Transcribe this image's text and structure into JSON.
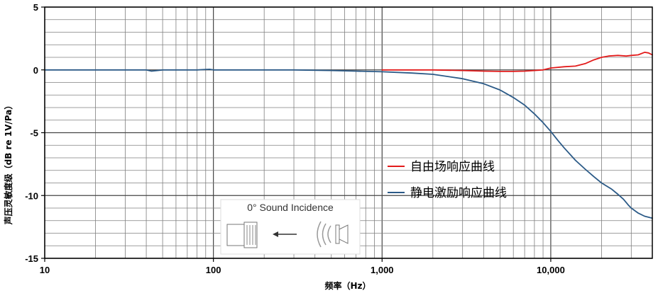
{
  "chart_data": {
    "type": "line",
    "xlabel": "频率（Hz）",
    "ylabel": "声压灵敏度级（dB re 1V/Pa）",
    "xscale": "log",
    "xlim": [
      10,
      40000
    ],
    "ylim": [
      -15,
      5
    ],
    "x_ticks": [
      10,
      100,
      1000,
      10000
    ],
    "x_tick_labels": [
      "10",
      "100",
      "1,000",
      "10,000"
    ],
    "y_ticks": [
      5,
      0,
      -5,
      -10,
      -15
    ],
    "y_tick_labels": [
      "5",
      "0",
      "-5",
      "-10",
      "-15"
    ],
    "grid": true,
    "legend_position": "center-right",
    "series": [
      {
        "name": "自由场响应曲线",
        "color": "#e31b1b",
        "x": [
          1000,
          1500,
          2000,
          3000,
          4000,
          5000,
          6000,
          7000,
          8000,
          9000,
          10000,
          12000,
          14000,
          16000,
          18000,
          20000,
          22000,
          25000,
          28000,
          30000,
          33000,
          36000,
          38000,
          40000
        ],
        "y": [
          0.0,
          0.0,
          0.0,
          -0.05,
          -0.1,
          -0.12,
          -0.12,
          -0.1,
          -0.05,
          0.0,
          0.15,
          0.25,
          0.3,
          0.5,
          0.8,
          1.0,
          1.1,
          1.15,
          1.1,
          1.15,
          1.2,
          1.4,
          1.35,
          1.2
        ]
      },
      {
        "name": "静电激励响应曲线",
        "color": "#2b5a87",
        "x": [
          10,
          20,
          30,
          40,
          43,
          50,
          60,
          80,
          95,
          100,
          110,
          150,
          200,
          300,
          500,
          700,
          1000,
          1500,
          2000,
          3000,
          4000,
          5000,
          6000,
          7000,
          8000,
          9000,
          10000,
          11000,
          12000,
          14000,
          16000,
          18000,
          20000,
          23000,
          25000,
          27000,
          29000,
          30000,
          33000,
          36000,
          40000
        ],
        "y": [
          0.0,
          0.0,
          0.0,
          0.0,
          -0.1,
          0.0,
          0.0,
          0.0,
          0.05,
          0.0,
          0.0,
          0.0,
          0.0,
          0.0,
          -0.05,
          -0.1,
          -0.15,
          -0.25,
          -0.35,
          -0.7,
          -1.1,
          -1.6,
          -2.2,
          -2.8,
          -3.5,
          -4.2,
          -4.9,
          -5.6,
          -6.2,
          -7.2,
          -7.9,
          -8.5,
          -9.0,
          -9.5,
          -9.9,
          -10.3,
          -10.8,
          -11.0,
          -11.4,
          -11.65,
          -11.8
        ]
      }
    ],
    "annotations": [
      {
        "text": "0° Sound Incidence"
      }
    ]
  }
}
